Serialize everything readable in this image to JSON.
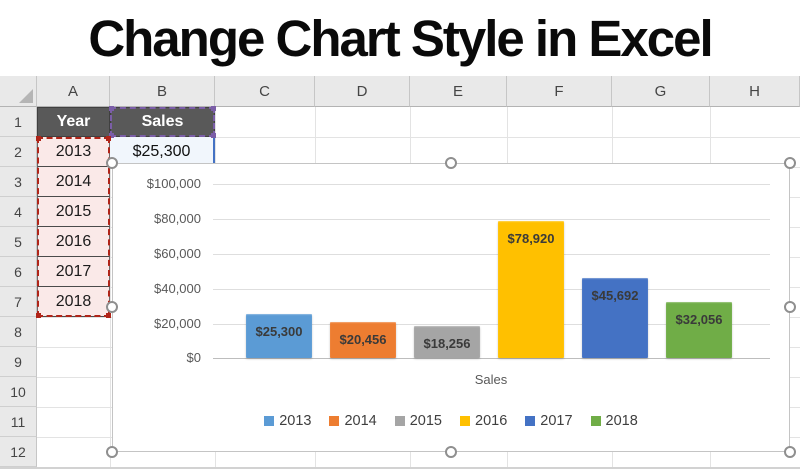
{
  "title": "Change Chart Style in Excel",
  "sheet": {
    "columns": [
      "A",
      "B",
      "C",
      "D",
      "E",
      "F",
      "G",
      "H"
    ],
    "rows": [
      "1",
      "2",
      "3",
      "4",
      "5",
      "6",
      "7",
      "8",
      "9",
      "10",
      "11",
      "12"
    ],
    "table": {
      "year_header": "Year",
      "sales_header": "Sales",
      "years": [
        "2013",
        "2014",
        "2015",
        "2016",
        "2017",
        "2018"
      ],
      "b2_value": "$25,300"
    },
    "fills": {
      "header_fill": "#595959",
      "year_column_fill": "#fae9e8",
      "value_cell_fill": "#f1f6fc"
    },
    "selection_colors": {
      "categories_range": "#b02418",
      "series_name_range": "#7b5ea7",
      "values_range": "#4472c4"
    }
  },
  "chart_data": {
    "type": "bar",
    "categories": [
      "2013",
      "2014",
      "2015",
      "2016",
      "2017",
      "2018"
    ],
    "values": [
      25300,
      20456,
      18256,
      78920,
      45692,
      32056
    ],
    "data_labels": [
      "$25,300",
      "$20,456",
      "$18,256",
      "$78,920",
      "$45,692",
      "$32,056"
    ],
    "colors": [
      "#5B9BD5",
      "#ED7D31",
      "#A5A5A5",
      "#FFC000",
      "#4472C4",
      "#70AD47"
    ],
    "title": "",
    "xlabel": "Sales",
    "ylabel": "",
    "ylim": [
      0,
      100000
    ],
    "ytick_labels": [
      "$100,000",
      "$80,000",
      "$60,000",
      "$40,000",
      "$20,000",
      "$0"
    ],
    "grid": true,
    "legend_position": "bottom"
  }
}
